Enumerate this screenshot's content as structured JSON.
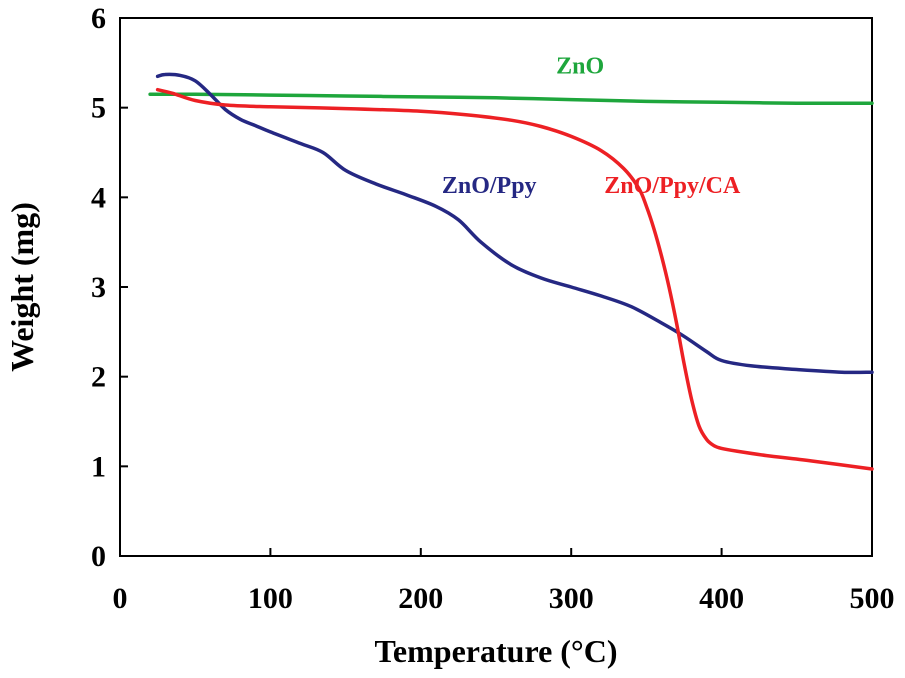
{
  "chart_data": {
    "type": "line",
    "title": "",
    "xlabel": "Temperature (°C)",
    "ylabel": "Weight (mg)",
    "xlim": [
      0,
      500
    ],
    "ylim": [
      0,
      6
    ],
    "xticks": [
      0,
      100,
      200,
      300,
      400,
      500
    ],
    "yticks": [
      0,
      1,
      2,
      3,
      4,
      5,
      6
    ],
    "grid": false,
    "legend": "inline labels",
    "series": [
      {
        "name": "ZnO",
        "color": "#1ea63c",
        "x": [
          20,
          50,
          100,
          150,
          200,
          250,
          300,
          350,
          400,
          450,
          500
        ],
        "y": [
          5.15,
          5.15,
          5.14,
          5.13,
          5.12,
          5.11,
          5.09,
          5.07,
          5.06,
          5.05,
          5.05
        ]
      },
      {
        "name": "ZnO/Ppy",
        "color": "#252883",
        "x": [
          25,
          30,
          40,
          50,
          60,
          70,
          80,
          90,
          100,
          120,
          135,
          150,
          170,
          190,
          210,
          225,
          240,
          260,
          280,
          300,
          320,
          340,
          360,
          375,
          390,
          400,
          420,
          450,
          480,
          500
        ],
        "y": [
          5.35,
          5.37,
          5.36,
          5.3,
          5.15,
          4.98,
          4.87,
          4.8,
          4.73,
          4.6,
          4.5,
          4.3,
          4.15,
          4.03,
          3.9,
          3.75,
          3.5,
          3.25,
          3.1,
          3.0,
          2.9,
          2.78,
          2.6,
          2.45,
          2.28,
          2.18,
          2.12,
          2.08,
          2.05,
          2.05
        ]
      },
      {
        "name": "ZnO/Ppy/CA",
        "color": "#ed2024",
        "x": [
          25,
          35,
          50,
          70,
          100,
          150,
          200,
          230,
          260,
          280,
          300,
          320,
          335,
          345,
          350,
          355,
          360,
          365,
          370,
          375,
          380,
          385,
          390,
          395,
          400,
          410,
          430,
          460,
          500
        ],
        "y": [
          5.2,
          5.16,
          5.08,
          5.03,
          5.01,
          4.99,
          4.96,
          4.92,
          4.86,
          4.79,
          4.68,
          4.52,
          4.32,
          4.1,
          3.9,
          3.65,
          3.35,
          3.0,
          2.6,
          2.15,
          1.75,
          1.45,
          1.3,
          1.23,
          1.2,
          1.17,
          1.12,
          1.06,
          0.97
        ]
      }
    ],
    "annotations": [
      {
        "text": "ZnO",
        "series": "ZnO",
        "x": 290,
        "y": 5.38
      },
      {
        "text": "ZnO/Ppy",
        "series": "ZnO/Ppy",
        "x": 214,
        "y": 4.05
      },
      {
        "text": "ZnO/Ppy/CA",
        "series": "ZnO/Ppy/CA",
        "x": 322,
        "y": 4.05
      }
    ]
  }
}
